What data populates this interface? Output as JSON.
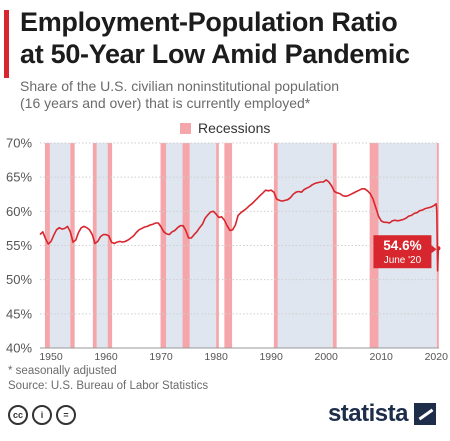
{
  "header": {
    "title_line1": "Employment-Population Ratio",
    "title_line2": "at 50-Year Low Amid Pandemic",
    "subtitle_line1": "Share of the U.S. civilian noninstitutional population",
    "subtitle_line2": "(16 years and over) that is currently employed*"
  },
  "legend": {
    "label": "Recessions",
    "color": "#f5a6ab"
  },
  "chart_data": {
    "type": "line",
    "title": "Employment-Population Ratio at 50-Year Low Amid Pandemic",
    "xlabel": "",
    "ylabel": "",
    "xlim": [
      1948,
      2020.5
    ],
    "ylim": [
      40,
      70
    ],
    "y_ticks": [
      40,
      45,
      50,
      55,
      60,
      65,
      70
    ],
    "y_tick_labels": [
      "40%",
      "45%",
      "50%",
      "55%",
      "60%",
      "65%",
      "70%"
    ],
    "x_ticks": [
      1950,
      1960,
      1970,
      1980,
      1990,
      2000,
      2010,
      2020
    ],
    "x_tick_labels": [
      "1950",
      "1960",
      "1970",
      "1980",
      "1990",
      "2000",
      "2010",
      "2020"
    ],
    "grid": true,
    "line_color": "#d7262e",
    "recession_color": "#f5a6ab",
    "shade_color": "#dfe6ef",
    "recessions": [
      [
        1948.9,
        1949.8
      ],
      [
        1953.5,
        1954.3
      ],
      [
        1957.6,
        1958.3
      ],
      [
        1960.3,
        1961.1
      ],
      [
        1969.9,
        1970.9
      ],
      [
        1973.9,
        1975.2
      ],
      [
        1980.0,
        1980.5
      ],
      [
        1981.5,
        1982.9
      ],
      [
        1990.5,
        1991.2
      ],
      [
        2001.2,
        2001.9
      ],
      [
        2007.9,
        2009.5
      ],
      [
        2020.1,
        2020.4
      ]
    ],
    "shaded_intervals": [
      [
        1949.8,
        1953.5
      ],
      [
        1958.3,
        1960.3
      ],
      [
        1970.9,
        1973.9
      ],
      [
        1975.2,
        1980.0
      ],
      [
        1991.2,
        2001.2
      ],
      [
        2009.5,
        2020.1
      ]
    ],
    "series": [
      {
        "x": [
          1948.0,
          1948.5,
          1949.0,
          1949.5,
          1950.0,
          1950.5,
          1951.0,
          1951.5,
          1952.0,
          1952.5,
          1953.0,
          1953.5,
          1954.0,
          1954.5,
          1955.0,
          1955.5,
          1956.0,
          1956.5,
          1957.0,
          1957.5,
          1958.0,
          1958.5,
          1959.0,
          1959.5,
          1960.0,
          1960.5,
          1961.0,
          1961.5,
          1962.0,
          1962.5,
          1963.0,
          1963.5,
          1964.0,
          1964.5,
          1965.0,
          1965.5,
          1966.0,
          1966.5,
          1967.0,
          1967.5,
          1968.0,
          1968.5,
          1969.0,
          1969.5,
          1970.0,
          1970.5,
          1971.0,
          1971.5,
          1972.0,
          1972.5,
          1973.0,
          1973.5,
          1974.0,
          1974.5,
          1975.0,
          1975.5,
          1976.0,
          1976.5,
          1977.0,
          1977.5,
          1978.0,
          1978.5,
          1979.0,
          1979.5,
          1980.0,
          1980.5,
          1981.0,
          1981.5,
          1982.0,
          1982.5,
          1983.0,
          1983.5,
          1984.0,
          1984.5,
          1985.0,
          1985.5,
          1986.0,
          1986.5,
          1987.0,
          1987.5,
          1988.0,
          1988.5,
          1989.0,
          1989.5,
          1990.0,
          1990.5,
          1991.0,
          1991.5,
          1992.0,
          1992.5,
          1993.0,
          1993.5,
          1994.0,
          1994.5,
          1995.0,
          1995.5,
          1996.0,
          1996.5,
          1997.0,
          1997.5,
          1998.0,
          1998.5,
          1999.0,
          1999.5,
          2000.0,
          2000.5,
          2001.0,
          2001.5,
          2002.0,
          2002.5,
          2003.0,
          2003.5,
          2004.0,
          2004.5,
          2005.0,
          2005.5,
          2006.0,
          2006.5,
          2007.0,
          2007.5,
          2008.0,
          2008.5,
          2009.0,
          2009.5,
          2010.0,
          2010.5,
          2011.0,
          2011.5,
          2012.0,
          2012.5,
          2013.0,
          2013.5,
          2014.0,
          2014.5,
          2015.0,
          2015.5,
          2016.0,
          2016.5,
          2017.0,
          2017.5,
          2018.0,
          2018.5,
          2019.0,
          2019.5,
          2020.0,
          2020.1,
          2020.25,
          2020.3,
          2020.4
        ],
        "y": [
          56.6,
          57.0,
          56.0,
          55.2,
          55.6,
          56.5,
          57.3,
          57.6,
          57.4,
          57.5,
          57.8,
          57.0,
          55.5,
          55.8,
          56.9,
          57.6,
          57.8,
          57.6,
          57.3,
          56.6,
          55.3,
          55.6,
          56.3,
          56.6,
          56.6,
          56.4,
          55.5,
          55.3,
          55.5,
          55.6,
          55.5,
          55.6,
          55.8,
          56.1,
          56.4,
          56.9,
          57.3,
          57.5,
          57.7,
          57.8,
          58.0,
          58.1,
          58.3,
          58.3,
          57.7,
          57.0,
          56.7,
          56.6,
          57.0,
          57.2,
          57.6,
          57.9,
          57.9,
          57.2,
          56.1,
          56.1,
          56.6,
          57.0,
          57.6,
          58.1,
          59.0,
          59.5,
          59.9,
          60.0,
          59.6,
          59.1,
          59.2,
          58.7,
          57.9,
          57.2,
          57.3,
          58.0,
          59.4,
          59.8,
          60.1,
          60.4,
          60.8,
          61.1,
          61.5,
          61.9,
          62.3,
          62.7,
          63.1,
          63.0,
          63.1,
          62.8,
          61.8,
          61.6,
          61.5,
          61.6,
          61.7,
          62.0,
          62.5,
          62.8,
          62.9,
          62.8,
          63.2,
          63.4,
          63.6,
          63.9,
          64.1,
          64.2,
          64.3,
          64.3,
          64.6,
          64.3,
          63.7,
          62.9,
          62.7,
          62.6,
          62.3,
          62.2,
          62.3,
          62.5,
          62.7,
          62.9,
          63.1,
          63.3,
          63.3,
          63.0,
          62.6,
          61.8,
          60.6,
          59.3,
          58.6,
          58.4,
          58.4,
          58.3,
          58.6,
          58.7,
          58.6,
          58.7,
          58.8,
          59.0,
          59.3,
          59.4,
          59.7,
          59.8,
          60.1,
          60.2,
          60.4,
          60.5,
          60.6,
          60.8,
          61.1,
          60.0,
          51.3,
          52.8,
          54.6
        ]
      }
    ],
    "annotation": {
      "value": "54.6%",
      "date": "June '20"
    }
  },
  "footnote": {
    "line1": "* seasonally adjusted",
    "line2": "Source: U.S. Bureau of Labor Statistics"
  },
  "footer": {
    "icons": [
      "cc",
      "i",
      "="
    ],
    "brand": "statista"
  }
}
